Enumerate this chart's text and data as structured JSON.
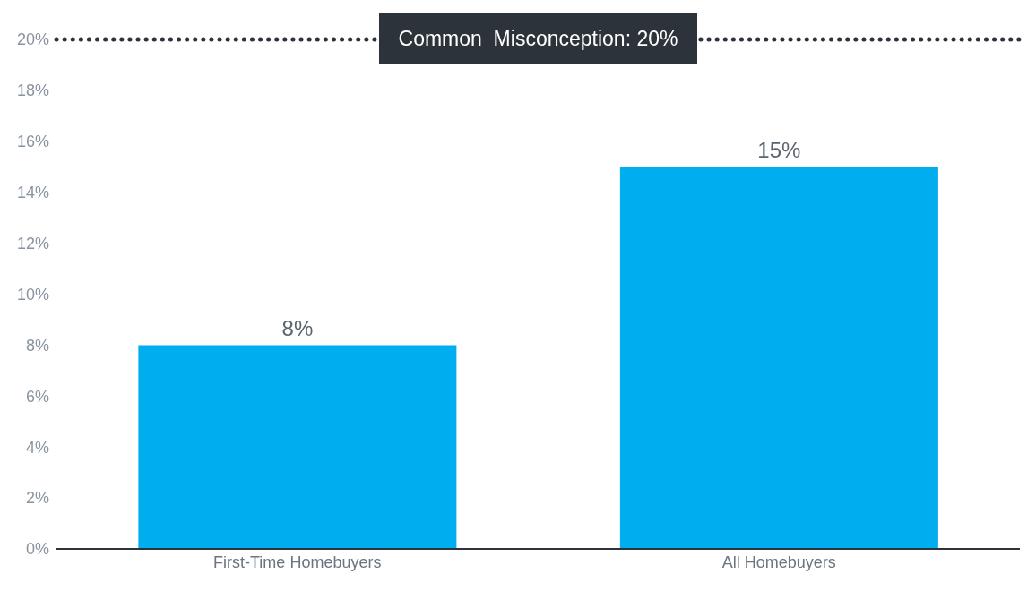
{
  "chart_data": {
    "type": "bar",
    "categories": [
      "First-Time Homebuyers",
      "All Homebuyers"
    ],
    "values": [
      8,
      15
    ],
    "color": "#00adee",
    "value_labels": [
      "8%",
      "15%"
    ],
    "ylim": [
      0,
      20
    ],
    "yticks": [
      {
        "value": 0,
        "label": "0%"
      },
      {
        "value": 2,
        "label": "2%"
      },
      {
        "value": 4,
        "label": "4%"
      },
      {
        "value": 6,
        "label": "6%"
      },
      {
        "value": 8,
        "label": "8%"
      },
      {
        "value": 10,
        "label": "10%"
      },
      {
        "value": 12,
        "label": "12%"
      },
      {
        "value": 14,
        "label": "14%"
      },
      {
        "value": 16,
        "label": "16%"
      },
      {
        "value": 18,
        "label": "18%"
      },
      {
        "value": 20,
        "label": "20%"
      }
    ],
    "ref_lines": [
      {
        "axis": "y",
        "value": 20,
        "label": "Common  Misconception: 20%",
        "color": "#2d333b",
        "line_style": "dotted"
      }
    ],
    "grid": false,
    "legend": false
  }
}
